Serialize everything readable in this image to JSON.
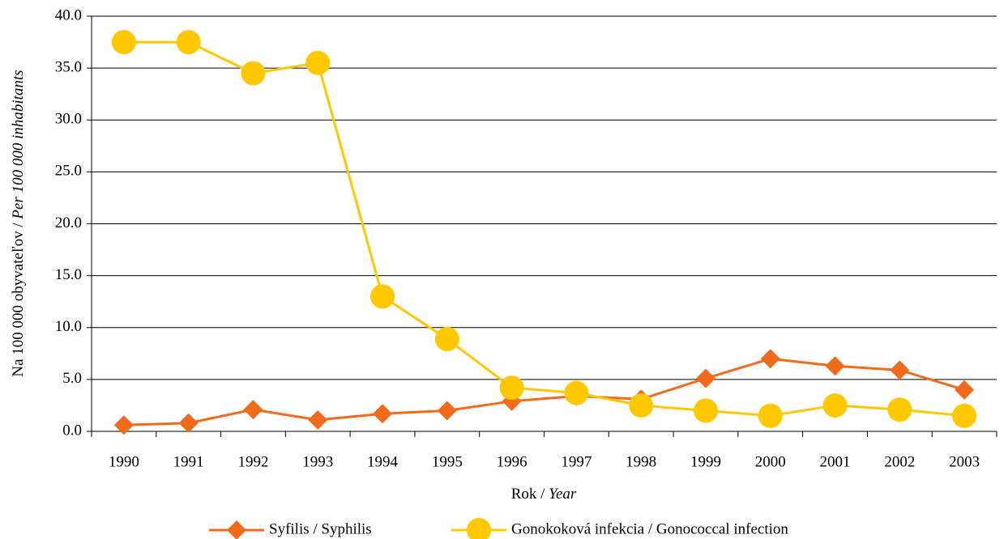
{
  "chart_data": {
    "type": "line",
    "x_label": [
      "Rok /",
      "Year"
    ],
    "y_label": [
      "Na 100 000 obyvateľov /",
      "Per 100 000 inhabitants"
    ],
    "categories": [
      "1990",
      "1991",
      "1992",
      "1993",
      "1994",
      "1995",
      "1996",
      "1997",
      "1998",
      "1999",
      "2000",
      "2001",
      "2002",
      "2003"
    ],
    "series": [
      {
        "name": "Syfilis / Syphilis",
        "color": "#f26b1d",
        "marker": "diamond",
        "values": [
          0.6,
          0.8,
          2.1,
          1.1,
          1.7,
          2.0,
          2.9,
          3.4,
          3.1,
          5.1,
          7.0,
          6.3,
          5.9,
          4.0
        ]
      },
      {
        "name": "Gonokoková infekcia / Gonococcal infection",
        "color": "#ffc800",
        "marker": "circle",
        "values": [
          37.5,
          37.5,
          34.5,
          35.5,
          13.0,
          8.9,
          4.2,
          3.7,
          2.5,
          2.0,
          1.5,
          2.5,
          2.1,
          1.5
        ]
      }
    ],
    "ylim": [
      0,
      40
    ],
    "yticks": [
      {
        "value": 0,
        "label": "0.0"
      },
      {
        "value": 5,
        "label": "5.0"
      },
      {
        "value": 10,
        "label": "10.0"
      },
      {
        "value": 15,
        "label": "15.0"
      },
      {
        "value": 20,
        "label": "20.0"
      },
      {
        "value": 25,
        "label": "25.0"
      },
      {
        "value": 30,
        "label": "30.0"
      },
      {
        "value": 35,
        "label": "35.0"
      },
      {
        "value": 40,
        "label": "40.0"
      }
    ],
    "grid": true,
    "legend": "bottom"
  }
}
